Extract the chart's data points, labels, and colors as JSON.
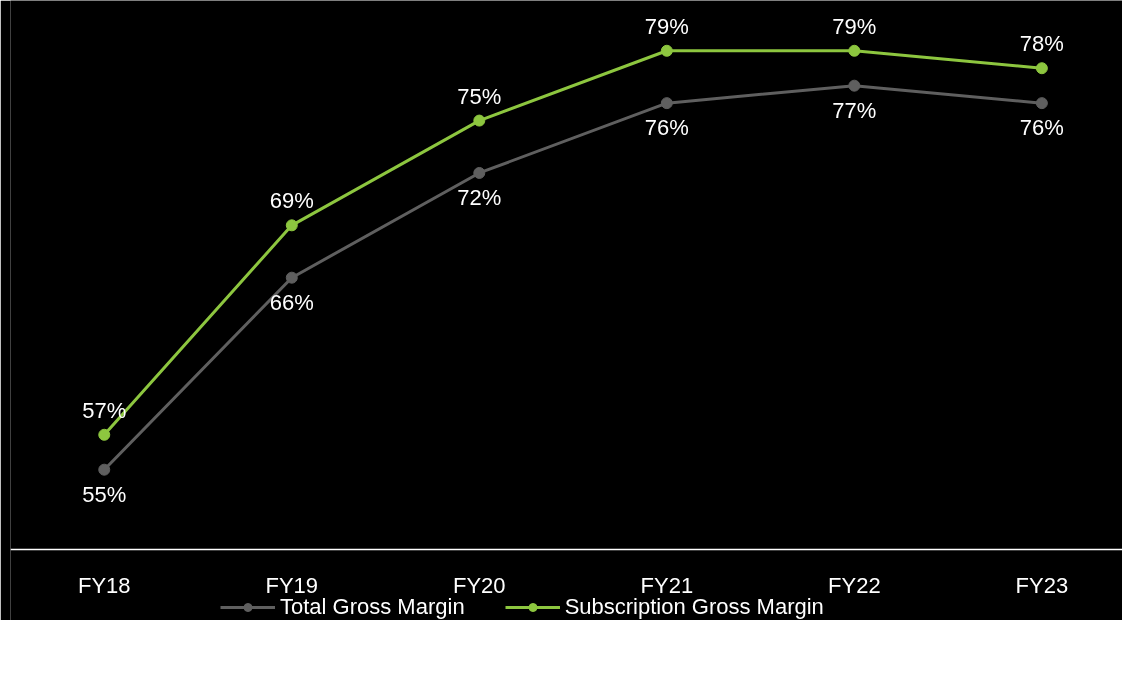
{
  "chart_data": {
    "type": "line",
    "categories": [
      "FY18",
      "FY19",
      "FY20",
      "FY21",
      "FY22",
      "FY23"
    ],
    "series": [
      {
        "name": "Total Gross Margin",
        "color": "#5f5f5f",
        "values": [
          55,
          66,
          72,
          76,
          77,
          76
        ],
        "value_labels": [
          "55%",
          "66%",
          "72%",
          "76%",
          "77%",
          "76%"
        ]
      },
      {
        "name": "Subscription Gross Margin",
        "color": "#8dc63f",
        "values": [
          57,
          69,
          75,
          79,
          79,
          78
        ],
        "value_labels": [
          "57%",
          "69%",
          "75%",
          "79%",
          "79%",
          "78%"
        ]
      }
    ],
    "marker": "circle",
    "line_style": "solid",
    "legend": "bottom",
    "grid": false,
    "tick_labels": "x"
  }
}
